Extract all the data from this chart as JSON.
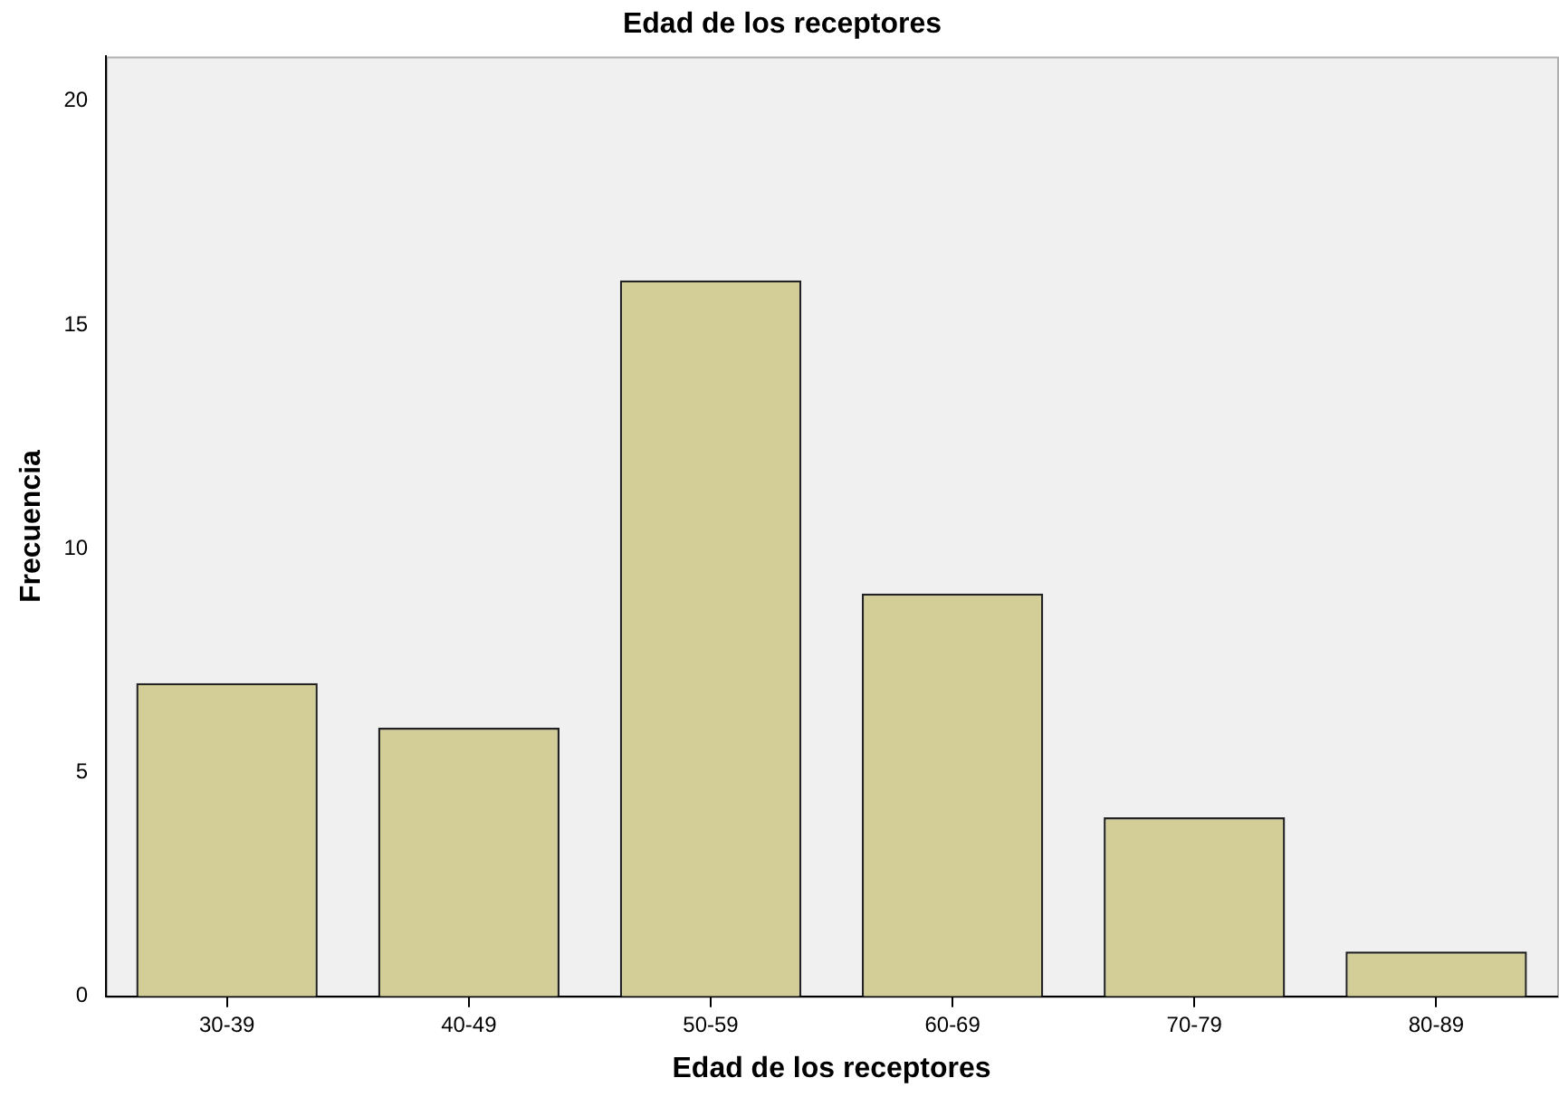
{
  "chart_data": {
    "type": "bar",
    "title": "Edad de los receptores",
    "xlabel": "Edad de los receptores",
    "ylabel": "Frecuencia",
    "categories": [
      "30-39",
      "40-49",
      "50-59",
      "60-69",
      "70-79",
      "80-89"
    ],
    "values": [
      7,
      6,
      16,
      9,
      4,
      1
    ],
    "color": "#d3ce97",
    "ylim": [
      0,
      21
    ],
    "yticks": [
      0,
      5,
      10,
      15,
      20
    ],
    "grid": false,
    "legend": false
  }
}
